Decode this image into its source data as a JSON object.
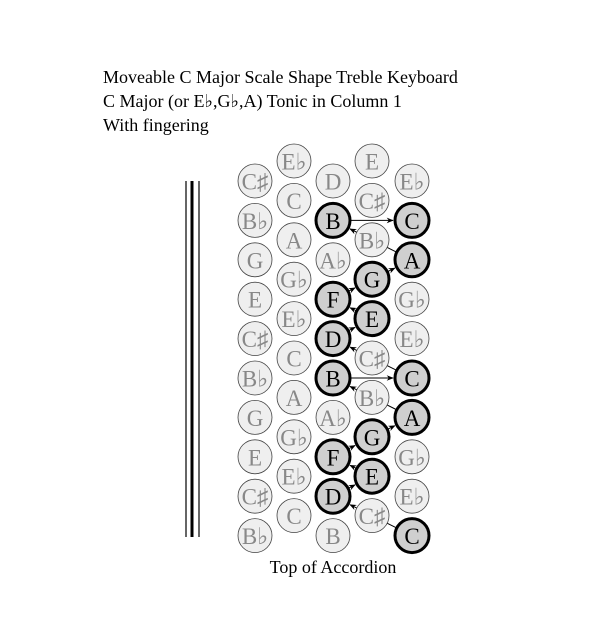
{
  "header": {
    "lines": [
      "Moveable C Major Scale Shape Treble Keyboard",
      "C Major (or E♭,G♭,A) Tonic in Column 1",
      "With fingering"
    ]
  },
  "footer": "Top of Accordion",
  "columns": [
    {
      "buttons": [
        {
          "label": "C♯"
        },
        {
          "label": "B♭"
        },
        {
          "label": "G"
        },
        {
          "label": "E"
        },
        {
          "label": "C♯"
        },
        {
          "label": "B♭"
        },
        {
          "label": "G"
        },
        {
          "label": "E"
        },
        {
          "label": "C♯"
        },
        {
          "label": "B♭"
        }
      ]
    },
    {
      "buttons": [
        {
          "label": "E♭"
        },
        {
          "label": "C"
        },
        {
          "label": "A"
        },
        {
          "label": "G♭"
        },
        {
          "label": "E♭"
        },
        {
          "label": "C"
        },
        {
          "label": "A"
        },
        {
          "label": "G♭"
        },
        {
          "label": "E♭"
        },
        {
          "label": "C"
        }
      ]
    },
    {
      "buttons": [
        {
          "label": "D"
        },
        {
          "label": "B",
          "fingered": true
        },
        {
          "label": "A♭"
        },
        {
          "label": "F",
          "fingered": true
        },
        {
          "label": "D",
          "fingered": true
        },
        {
          "label": "B",
          "fingered": true
        },
        {
          "label": "A♭"
        },
        {
          "label": "F",
          "fingered": true
        },
        {
          "label": "D",
          "fingered": true
        },
        {
          "label": "B"
        }
      ]
    },
    {
      "buttons": [
        {
          "label": "E"
        },
        {
          "label": "C♯"
        },
        {
          "label": "B♭"
        },
        {
          "label": "G",
          "fingered": true
        },
        {
          "label": "E",
          "fingered": true
        },
        {
          "label": "C♯"
        },
        {
          "label": "B♭"
        },
        {
          "label": "G",
          "fingered": true
        },
        {
          "label": "E",
          "fingered": true
        },
        {
          "label": "C♯"
        }
      ]
    },
    {
      "buttons": [
        {
          "label": "E♭"
        },
        {
          "label": "C",
          "fingered": true
        },
        {
          "label": "A",
          "fingered": true
        },
        {
          "label": "G♭"
        },
        {
          "label": "E♭"
        },
        {
          "label": "C",
          "fingered": true
        },
        {
          "label": "A",
          "fingered": true
        },
        {
          "label": "G♭"
        },
        {
          "label": "E♭"
        },
        {
          "label": "C",
          "fingered": true
        }
      ]
    }
  ]
}
